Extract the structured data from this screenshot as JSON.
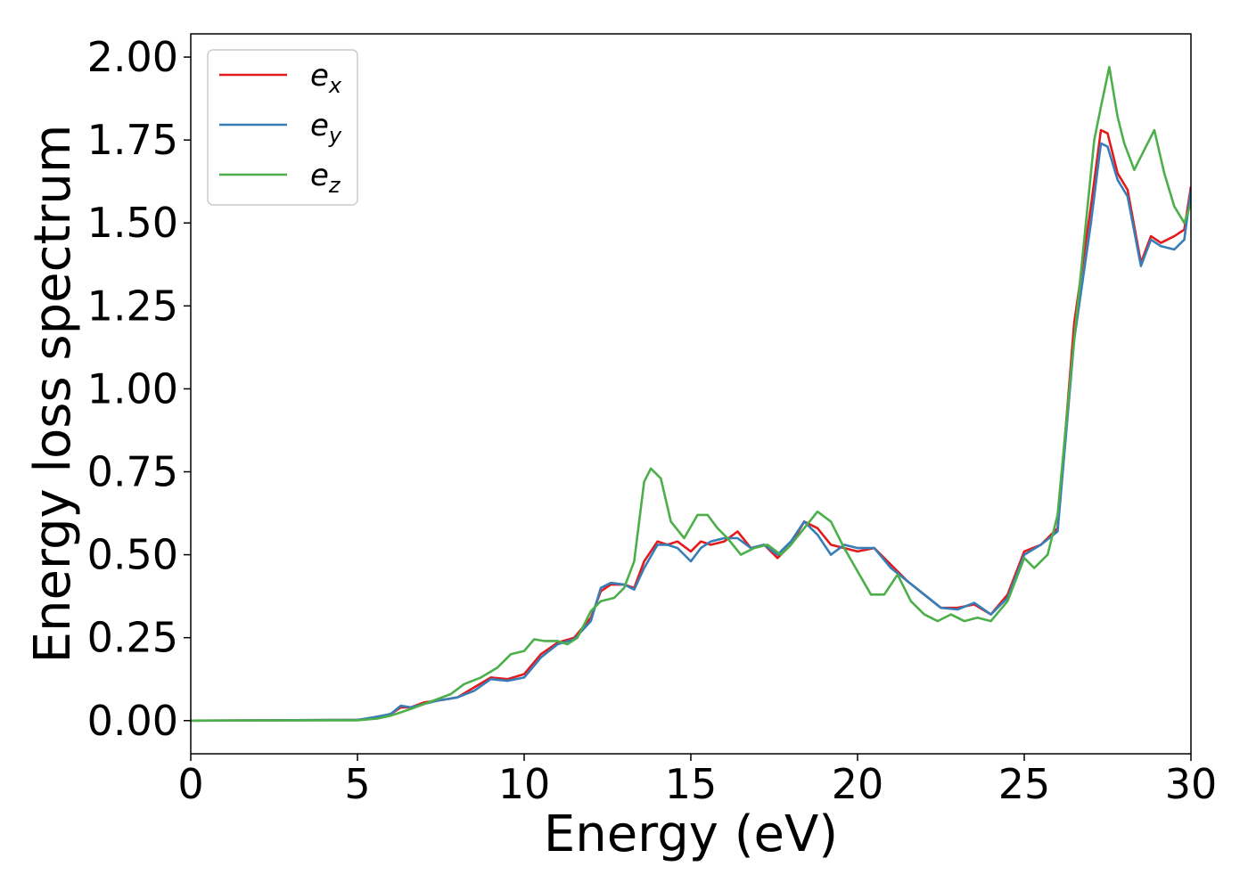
{
  "chart_data": {
    "type": "line",
    "title": "",
    "xlabel": "Energy (eV)",
    "ylabel": "Energy loss spectrum",
    "xlim": [
      0,
      30
    ],
    "ylim": [
      -0.1,
      2.07
    ],
    "xticks": [
      0,
      5,
      10,
      15,
      20,
      25,
      30
    ],
    "xtick_labels": [
      "0",
      "5",
      "10",
      "15",
      "20",
      "25",
      "30"
    ],
    "yticks": [
      0,
      0.25,
      0.5,
      0.75,
      1.0,
      1.25,
      1.5,
      1.75,
      2.0
    ],
    "ytick_labels": [
      "0.00",
      "0.25",
      "0.50",
      "0.75",
      "1.00",
      "1.25",
      "1.50",
      "1.75",
      "2.00"
    ],
    "grid": false,
    "legend_position": "top-left",
    "series": [
      {
        "name": "e_x",
        "label_base": "e",
        "label_sub": "x",
        "color": "#e41a1c",
        "x": [
          0,
          5,
          5.6,
          6.0,
          6.3,
          6.6,
          7.0,
          7.4,
          8.0,
          8.5,
          9.0,
          9.5,
          10.0,
          10.5,
          11.0,
          11.5,
          12.0,
          12.3,
          12.6,
          13.0,
          13.3,
          13.6,
          14.0,
          14.3,
          14.6,
          15.0,
          15.3,
          15.6,
          16.0,
          16.4,
          16.8,
          17.2,
          17.6,
          18.0,
          18.4,
          18.8,
          19.2,
          19.6,
          20.0,
          20.5,
          21.0,
          21.5,
          22.0,
          22.5,
          23.0,
          23.5,
          24.0,
          24.5,
          25.0,
          25.5,
          26.0,
          26.5,
          27.0,
          27.3,
          27.5,
          27.8,
          28.1,
          28.5,
          28.8,
          29.1,
          29.5,
          29.8,
          30.0
        ],
        "y": [
          0.0,
          0.002,
          0.01,
          0.02,
          0.04,
          0.04,
          0.055,
          0.06,
          0.07,
          0.1,
          0.13,
          0.125,
          0.14,
          0.2,
          0.235,
          0.25,
          0.31,
          0.39,
          0.41,
          0.41,
          0.4,
          0.48,
          0.54,
          0.53,
          0.54,
          0.51,
          0.54,
          0.53,
          0.54,
          0.57,
          0.52,
          0.53,
          0.49,
          0.53,
          0.6,
          0.58,
          0.53,
          0.52,
          0.51,
          0.52,
          0.47,
          0.42,
          0.38,
          0.34,
          0.34,
          0.35,
          0.32,
          0.38,
          0.51,
          0.53,
          0.58,
          1.2,
          1.55,
          1.78,
          1.77,
          1.65,
          1.6,
          1.38,
          1.46,
          1.44,
          1.46,
          1.48,
          1.61
        ]
      },
      {
        "name": "e_y",
        "label_base": "e",
        "label_sub": "y",
        "color": "#377eb8",
        "x": [
          0,
          5,
          5.6,
          6.0,
          6.3,
          6.6,
          7.0,
          7.4,
          8.0,
          8.5,
          9.0,
          9.5,
          10.0,
          10.5,
          11.0,
          11.5,
          12.0,
          12.3,
          12.6,
          13.0,
          13.3,
          13.6,
          14.0,
          14.3,
          14.6,
          15.0,
          15.3,
          15.6,
          16.0,
          16.4,
          16.8,
          17.2,
          17.6,
          18.0,
          18.4,
          18.8,
          19.2,
          19.6,
          20.0,
          20.5,
          21.0,
          21.5,
          22.0,
          22.5,
          23.0,
          23.5,
          24.0,
          24.5,
          25.0,
          25.5,
          26.0,
          26.5,
          27.0,
          27.3,
          27.5,
          27.8,
          28.1,
          28.5,
          28.8,
          29.1,
          29.5,
          29.8,
          30.0
        ],
        "y": [
          0.0,
          0.002,
          0.012,
          0.02,
          0.045,
          0.04,
          0.05,
          0.06,
          0.07,
          0.09,
          0.125,
          0.12,
          0.13,
          0.19,
          0.23,
          0.245,
          0.3,
          0.4,
          0.415,
          0.41,
          0.395,
          0.46,
          0.53,
          0.53,
          0.52,
          0.48,
          0.52,
          0.54,
          0.55,
          0.55,
          0.52,
          0.53,
          0.5,
          0.54,
          0.6,
          0.56,
          0.5,
          0.53,
          0.52,
          0.52,
          0.46,
          0.42,
          0.38,
          0.34,
          0.335,
          0.355,
          0.32,
          0.37,
          0.5,
          0.53,
          0.57,
          1.15,
          1.5,
          1.74,
          1.73,
          1.63,
          1.58,
          1.37,
          1.45,
          1.43,
          1.42,
          1.45,
          1.6
        ]
      },
      {
        "name": "e_z",
        "label_base": "e",
        "label_sub": "z",
        "color": "#4daf4a",
        "x": [
          0,
          5,
          5.6,
          6.0,
          6.3,
          6.6,
          7.0,
          7.4,
          7.8,
          8.2,
          8.7,
          9.2,
          9.6,
          10.0,
          10.3,
          10.6,
          11.0,
          11.3,
          11.6,
          12.0,
          12.3,
          12.7,
          13.0,
          13.3,
          13.6,
          13.8,
          14.1,
          14.4,
          14.8,
          15.2,
          15.5,
          15.8,
          16.1,
          16.5,
          16.9,
          17.3,
          17.7,
          18.0,
          18.4,
          18.8,
          19.2,
          19.6,
          20.0,
          20.4,
          20.8,
          21.2,
          21.6,
          22.0,
          22.4,
          22.8,
          23.2,
          23.6,
          24.0,
          24.5,
          25.0,
          25.3,
          25.7,
          26.0,
          26.4,
          26.8,
          27.1,
          27.3,
          27.55,
          27.8,
          28.0,
          28.3,
          28.6,
          28.9,
          29.2,
          29.5,
          29.8,
          30.0
        ],
        "y": [
          0.0,
          0.001,
          0.006,
          0.015,
          0.025,
          0.035,
          0.05,
          0.065,
          0.08,
          0.11,
          0.13,
          0.16,
          0.2,
          0.21,
          0.245,
          0.24,
          0.24,
          0.23,
          0.25,
          0.33,
          0.36,
          0.37,
          0.4,
          0.48,
          0.72,
          0.76,
          0.73,
          0.6,
          0.55,
          0.62,
          0.62,
          0.58,
          0.55,
          0.5,
          0.52,
          0.53,
          0.5,
          0.53,
          0.58,
          0.63,
          0.6,
          0.52,
          0.45,
          0.38,
          0.38,
          0.44,
          0.36,
          0.32,
          0.3,
          0.32,
          0.3,
          0.31,
          0.3,
          0.36,
          0.49,
          0.46,
          0.5,
          0.62,
          1.05,
          1.45,
          1.75,
          1.85,
          1.97,
          1.82,
          1.74,
          1.66,
          1.72,
          1.78,
          1.65,
          1.55,
          1.5,
          1.56
        ]
      }
    ]
  }
}
